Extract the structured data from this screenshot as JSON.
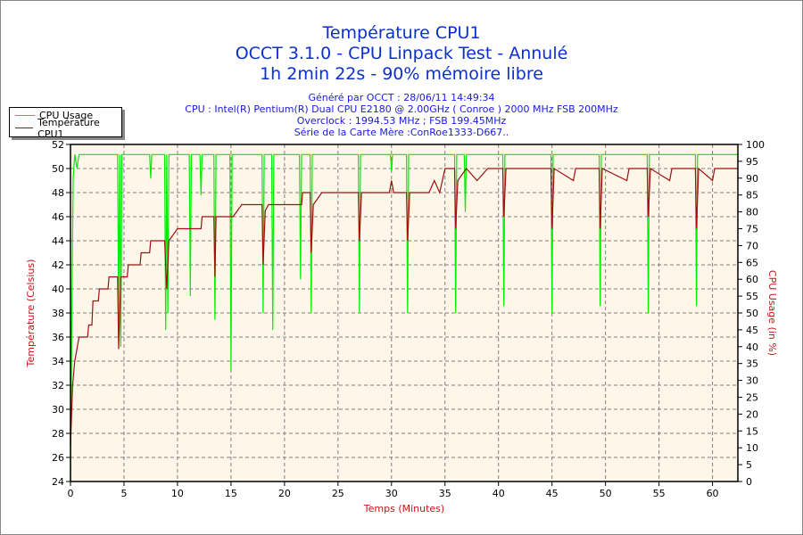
{
  "header": {
    "title_lines": [
      "Température CPU1",
      "OCCT 3.1.0 - CPU Linpack Test - Annulé",
      "1h 2min 22s - 90% mémoire libre"
    ],
    "info_lines": [
      "Généré par OCCT : 28/06/11 14:49:34",
      "CPU : Intel(R) Pentium(R) Dual CPU E2180 @ 2.00GHz ( Conroe ) 2000 MHz FSB 200MHz",
      "Overclock : 1994.53 MHz ; FSB 199.45MHz",
      "Série de la Carte Mère :ConRoe1333-D667.."
    ]
  },
  "colors": {
    "cpu_usage": "#00ee00",
    "temperature": "#a01010",
    "plot_bg": "#fdf6e9",
    "title": "#0b2fd0",
    "axis_label": "#c01818"
  },
  "chart_data": {
    "type": "line",
    "title": "Température CPU1",
    "xlabel": "Temps (Minutes)",
    "ylabel": "Température (Celsius)",
    "y2label": "CPU Usage (in %)",
    "xlim": [
      0,
      62.37
    ],
    "ylim": [
      24,
      52
    ],
    "y2lim": [
      0,
      100
    ],
    "xticks": [
      0,
      5,
      10,
      15,
      20,
      25,
      30,
      35,
      40,
      45,
      50,
      55,
      60
    ],
    "yticks": [
      24,
      26,
      28,
      30,
      32,
      34,
      36,
      38,
      40,
      42,
      44,
      46,
      48,
      50,
      52
    ],
    "y2ticks": [
      0,
      5,
      10,
      15,
      20,
      25,
      30,
      35,
      40,
      45,
      50,
      55,
      60,
      65,
      70,
      75,
      80,
      85,
      90,
      95,
      100
    ],
    "grid": true,
    "legend": {
      "position": "top-left",
      "entries": [
        "CPU Usage",
        "Température CPU1"
      ]
    },
    "series": [
      {
        "name": "CPU Usage",
        "axis": "right",
        "points": [
          [
            0,
            0
          ],
          [
            0.1,
            40
          ],
          [
            0.25,
            90
          ],
          [
            0.4,
            97
          ],
          [
            0.6,
            93
          ],
          [
            0.8,
            97
          ],
          [
            4.4,
            97
          ],
          [
            4.5,
            48
          ],
          [
            4.6,
            97
          ],
          [
            4.7,
            40
          ],
          [
            4.8,
            97
          ],
          [
            7.4,
            97
          ],
          [
            7.5,
            90
          ],
          [
            7.6,
            97
          ],
          [
            8.8,
            97
          ],
          [
            8.9,
            45
          ],
          [
            9.0,
            97
          ],
          [
            9.1,
            50
          ],
          [
            9.2,
            97
          ],
          [
            11.1,
            97
          ],
          [
            11.2,
            55
          ],
          [
            11.3,
            97
          ],
          [
            12.1,
            97
          ],
          [
            12.2,
            85
          ],
          [
            12.3,
            97
          ],
          [
            13.4,
            97
          ],
          [
            13.5,
            48
          ],
          [
            13.6,
            97
          ],
          [
            14.9,
            97
          ],
          [
            15.0,
            33
          ],
          [
            15.1,
            97
          ],
          [
            17.9,
            97
          ],
          [
            18.0,
            50
          ],
          [
            18.1,
            97
          ],
          [
            18.8,
            97
          ],
          [
            18.9,
            45
          ],
          [
            19.0,
            97
          ],
          [
            21.4,
            97
          ],
          [
            21.5,
            60
          ],
          [
            21.6,
            97
          ],
          [
            22.4,
            97
          ],
          [
            22.5,
            50
          ],
          [
            22.6,
            97
          ],
          [
            26.9,
            97
          ],
          [
            27.0,
            50
          ],
          [
            27.1,
            97
          ],
          [
            29.9,
            97
          ],
          [
            30.0,
            92
          ],
          [
            30.1,
            97
          ],
          [
            31.4,
            97
          ],
          [
            31.5,
            50
          ],
          [
            31.6,
            97
          ],
          [
            35.9,
            97
          ],
          [
            36.0,
            50
          ],
          [
            36.1,
            97
          ],
          [
            36.8,
            97
          ],
          [
            36.9,
            80
          ],
          [
            37.0,
            97
          ],
          [
            40.4,
            97
          ],
          [
            40.5,
            52
          ],
          [
            40.6,
            97
          ],
          [
            44.9,
            97
          ],
          [
            45.0,
            50
          ],
          [
            45.1,
            97
          ],
          [
            49.4,
            97
          ],
          [
            49.5,
            52
          ],
          [
            49.6,
            97
          ],
          [
            53.9,
            97
          ],
          [
            54.0,
            50
          ],
          [
            54.1,
            97
          ],
          [
            58.4,
            97
          ],
          [
            58.5,
            52
          ],
          [
            58.6,
            97
          ],
          [
            62.37,
            97
          ]
        ]
      },
      {
        "name": "Température CPU1",
        "axis": "left",
        "points": [
          [
            0,
            27
          ],
          [
            0.2,
            32
          ],
          [
            0.4,
            34
          ],
          [
            0.6,
            35
          ],
          [
            0.8,
            36
          ],
          [
            1.6,
            36
          ],
          [
            1.7,
            37
          ],
          [
            2.0,
            37
          ],
          [
            2.1,
            39
          ],
          [
            2.6,
            39
          ],
          [
            2.7,
            40
          ],
          [
            3.5,
            40
          ],
          [
            3.6,
            41
          ],
          [
            4.4,
            41
          ],
          [
            4.5,
            35
          ],
          [
            4.6,
            38
          ],
          [
            4.7,
            41
          ],
          [
            5.3,
            41
          ],
          [
            5.4,
            42
          ],
          [
            6.5,
            42
          ],
          [
            6.6,
            43
          ],
          [
            7.4,
            43
          ],
          [
            7.5,
            44
          ],
          [
            8.8,
            44
          ],
          [
            9.0,
            40
          ],
          [
            9.2,
            44
          ],
          [
            10.0,
            45
          ],
          [
            12.2,
            45
          ],
          [
            12.3,
            46
          ],
          [
            13.4,
            46
          ],
          [
            13.5,
            41
          ],
          [
            13.6,
            46
          ],
          [
            15.2,
            46
          ],
          [
            16.0,
            47
          ],
          [
            17.9,
            47
          ],
          [
            18.0,
            42
          ],
          [
            18.2,
            46.5
          ],
          [
            18.5,
            47
          ],
          [
            21.6,
            47
          ],
          [
            21.7,
            48
          ],
          [
            22.4,
            48
          ],
          [
            22.5,
            43
          ],
          [
            22.7,
            47
          ],
          [
            23.5,
            48
          ],
          [
            26.9,
            48
          ],
          [
            27.0,
            44
          ],
          [
            27.2,
            48
          ],
          [
            29.8,
            48
          ],
          [
            30.0,
            49
          ],
          [
            30.2,
            48
          ],
          [
            31.4,
            48
          ],
          [
            31.5,
            44
          ],
          [
            31.7,
            48
          ],
          [
            33.5,
            48
          ],
          [
            34.0,
            49
          ],
          [
            34.5,
            48
          ],
          [
            35.0,
            50
          ],
          [
            35.9,
            50
          ],
          [
            36.0,
            45
          ],
          [
            36.2,
            49
          ],
          [
            37.0,
            50
          ],
          [
            38.0,
            49
          ],
          [
            39.0,
            50
          ],
          [
            40.4,
            50
          ],
          [
            40.5,
            46
          ],
          [
            40.7,
            50
          ],
          [
            44.9,
            50
          ],
          [
            45.0,
            45
          ],
          [
            45.2,
            50
          ],
          [
            47.0,
            49
          ],
          [
            47.2,
            50
          ],
          [
            49.4,
            50
          ],
          [
            49.5,
            45
          ],
          [
            49.7,
            50
          ],
          [
            52.0,
            49
          ],
          [
            52.2,
            50
          ],
          [
            53.9,
            50
          ],
          [
            54.0,
            46
          ],
          [
            54.2,
            50
          ],
          [
            56.0,
            49
          ],
          [
            56.2,
            50
          ],
          [
            58.4,
            50
          ],
          [
            58.5,
            45
          ],
          [
            58.7,
            50
          ],
          [
            60.0,
            49
          ],
          [
            60.2,
            50
          ],
          [
            62.37,
            50
          ]
        ]
      }
    ]
  }
}
